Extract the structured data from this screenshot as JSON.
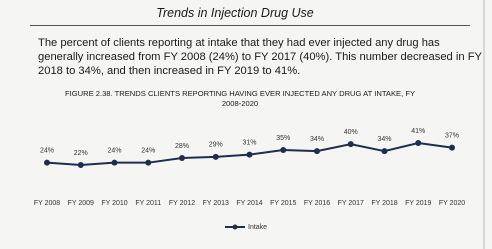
{
  "heading": "Trends in Injection Drug Use",
  "paragraph": [
    "The percent of clients reporting at intake that they had ever injected any drug has",
    "generally increased from FY 2008 (24%) to FY 2017 (40%). This number decreased in FY",
    "2018 to 34%, and then increased in FY 2019 to 41%."
  ],
  "chart_data": {
    "type": "line",
    "title": "FIGURE 2.38. TRENDS CLIENTS REPORTING HAVING EVER INJECTED ANY DRUG AT INTAKE, FY 2008-2020",
    "categories": [
      "FY 2008",
      "FY 2009",
      "FY 2010",
      "FY 2011",
      "FY 2012",
      "FY 2013",
      "FY 2014",
      "FY 2015",
      "FY 2016",
      "FY 2017",
      "FY 2018",
      "FY 2019",
      "FY 2020"
    ],
    "series": [
      {
        "name": "Intake",
        "color": "#1f2d4e",
        "values": [
          24,
          22,
          24,
          24,
          28,
          29,
          31,
          35,
          34,
          40,
          34,
          41,
          37
        ],
        "value_labels": [
          "24%",
          "22%",
          "24%",
          "24%",
          "28%",
          "29%",
          "31%",
          "35%",
          "34%",
          "40%",
          "34%",
          "41%",
          "37%"
        ]
      }
    ],
    "legend": "bottom"
  }
}
